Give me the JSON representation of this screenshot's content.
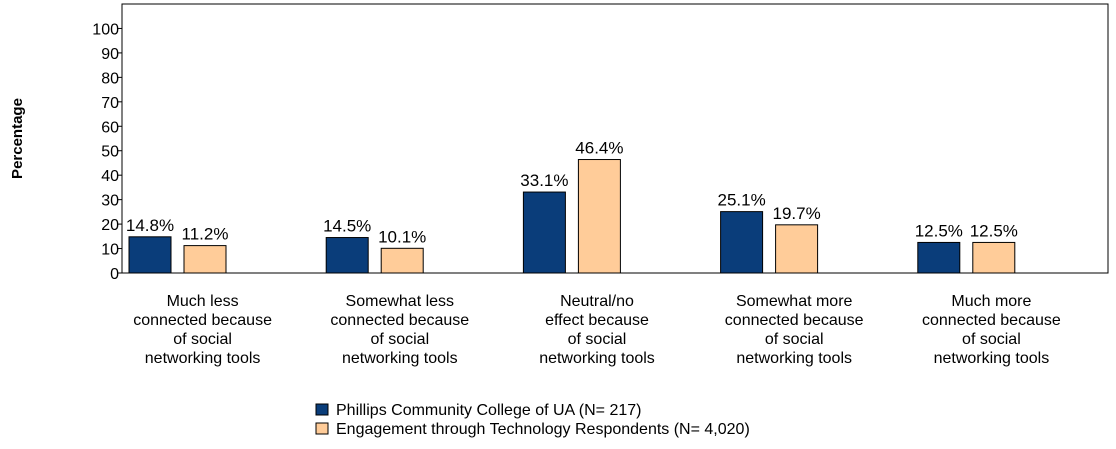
{
  "chart_data": {
    "type": "bar",
    "title": "",
    "xlabel": "",
    "ylabel": "Percentage",
    "ylim": [
      0,
      110
    ],
    "yticks": [
      0,
      10,
      20,
      30,
      40,
      50,
      60,
      70,
      80,
      90,
      100
    ],
    "grid": false,
    "legend_position": "bottom-center",
    "categories": [
      [
        "Much less",
        "connected because",
        "of social",
        "networking tools"
      ],
      [
        "Somewhat less",
        "connected because",
        "of social",
        "networking tools"
      ],
      [
        "Neutral/no",
        "effect because",
        "of social",
        "networking tools"
      ],
      [
        "Somewhat more",
        "connected because",
        "of social",
        "networking tools"
      ],
      [
        "Much more",
        "connected because",
        "of social",
        "networking tools"
      ]
    ],
    "series": [
      {
        "name": "Phillips Community College of UA (N= 217)",
        "color": "#0a3d7a",
        "values": [
          14.8,
          14.5,
          33.1,
          25.1,
          12.5
        ],
        "labels": [
          "14.8%",
          "14.5%",
          "33.1%",
          "25.1%",
          "12.5%"
        ]
      },
      {
        "name": "Engagement through Technology Respondents (N= 4,020)",
        "color": "#ffcc99",
        "values": [
          11.2,
          10.1,
          46.4,
          19.7,
          12.5
        ],
        "labels": [
          "11.2%",
          "10.1%",
          "46.4%",
          "19.7%",
          "12.5%"
        ]
      }
    ]
  }
}
